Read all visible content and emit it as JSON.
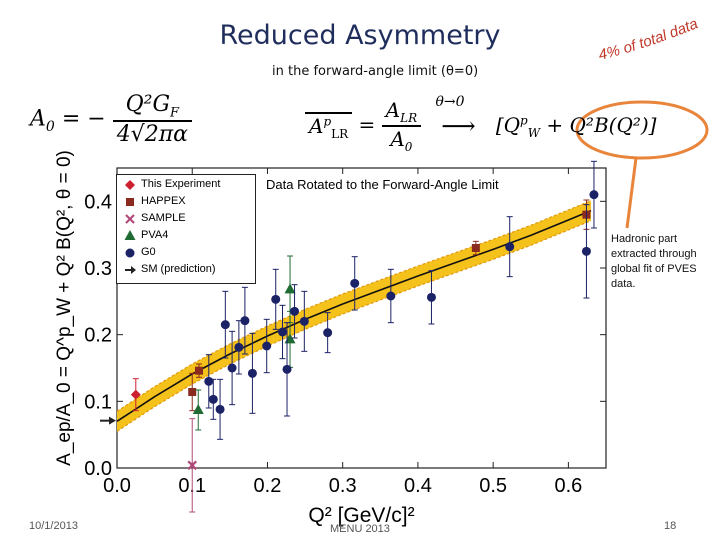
{
  "slide": {
    "title": "Reduced Asymmetry",
    "subtitle": "in the forward-angle limit (θ=0)",
    "curved_note": "4% of total data",
    "side_note": "Hadronic part extracted through global fit of PVES data.",
    "footer_date": "10/1/2013",
    "footer_conf": "MENU 2013",
    "footer_page": "18",
    "accent_orange": "#e9853b",
    "title_color": "#1f2d5c"
  },
  "equations": {
    "a0_lhs": "A",
    "a0_sub": "0",
    "a0_eq": "= −",
    "a0_num": "Q²G",
    "a0_num_sub": "F",
    "a0_den": "4√2πα",
    "ratio_lhs_num": "A",
    "ratio_lhs_num_sup": "p",
    "ratio_lhs_num_sub": "LR",
    "ratio_lhs_den": "",
    "ratio_eq": "=",
    "ratio_num": "A",
    "ratio_num_sub": "LR",
    "ratio_den": "A",
    "ratio_den_sub": "0",
    "arrow": "θ→0",
    "arrow_glyph": "⟶",
    "rhs_open": "[Q",
    "rhs_sup": "p",
    "rhs_sub": "W",
    "rhs_rest": " + Q²B(Q²)]"
  },
  "chart_data": {
    "type": "scatter",
    "title": "Data Rotated to the Forward-Angle Limit",
    "xlabel": "Q² [GeV/c]²",
    "ylabel": "A_ep/A_0 = Q^p_W + Q² B(Q², θ = 0)",
    "xlim": [
      0.0,
      0.65
    ],
    "ylim": [
      0.0,
      0.45
    ],
    "xticks": [
      0.0,
      0.1,
      0.2,
      0.3,
      0.4,
      0.5,
      0.6
    ],
    "xtick_labels": [
      "0.0",
      "0.1",
      "0.2",
      "0.3",
      "0.4",
      "0.5",
      "0.6"
    ],
    "yticks": [
      0.0,
      0.1,
      0.2,
      0.3,
      0.4
    ],
    "ytick_labels": [
      "0.0",
      "0.1",
      "0.2",
      "0.3",
      "0.4"
    ],
    "arrow_marker": {
      "name": "SM (prediction)",
      "y": 0.071,
      "color": "#222222"
    },
    "fit": {
      "name": "Global fit",
      "x": [
        0.0,
        0.05,
        0.1,
        0.15,
        0.2,
        0.25,
        0.3,
        0.35,
        0.4,
        0.45,
        0.5,
        0.55,
        0.6,
        0.63
      ],
      "y": [
        0.07,
        0.107,
        0.141,
        0.171,
        0.198,
        0.223,
        0.246,
        0.267,
        0.288,
        0.308,
        0.328,
        0.349,
        0.372,
        0.386
      ],
      "band": 0.015,
      "color": "#111111",
      "band_color": "#f5c21b",
      "band_edge_color": "#e09a10"
    },
    "series": [
      {
        "name": "This Experiment",
        "marker": "diamond",
        "color": "#cc1f2f",
        "points": [
          {
            "x": 0.025,
            "y": 0.11,
            "err": 0.024
          }
        ]
      },
      {
        "name": "HAPPEX",
        "marker": "square",
        "color": "#8b2a1e",
        "points": [
          {
            "x": 0.1,
            "y": 0.114,
            "err": 0.028
          },
          {
            "x": 0.109,
            "y": 0.146,
            "err": 0.01
          },
          {
            "x": 0.477,
            "y": 0.33,
            "err": 0.01
          },
          {
            "x": 0.624,
            "y": 0.38,
            "err": 0.022
          }
        ]
      },
      {
        "name": "SAMPLE",
        "marker": "x",
        "color": "#b14a78",
        "points": [
          {
            "x": 0.1,
            "y": 0.004,
            "err": 0.07
          }
        ]
      },
      {
        "name": "PVA4",
        "marker": "triangle",
        "color": "#1f6b33",
        "points": [
          {
            "x": 0.108,
            "y": 0.087,
            "err": 0.03
          },
          {
            "x": 0.23,
            "y": 0.268,
            "err": 0.05
          },
          {
            "x": 0.23,
            "y": 0.193,
            "err": 0.042
          }
        ]
      },
      {
        "name": "G0",
        "marker": "circle",
        "color": "#1b2266",
        "points": [
          {
            "x": 0.122,
            "y": 0.13,
            "err": 0.04
          },
          {
            "x": 0.128,
            "y": 0.103,
            "err": 0.03
          },
          {
            "x": 0.137,
            "y": 0.088,
            "err": 0.045
          },
          {
            "x": 0.144,
            "y": 0.215,
            "err": 0.05
          },
          {
            "x": 0.153,
            "y": 0.15,
            "err": 0.055
          },
          {
            "x": 0.162,
            "y": 0.181,
            "err": 0.04
          },
          {
            "x": 0.17,
            "y": 0.221,
            "err": 0.05
          },
          {
            "x": 0.18,
            "y": 0.142,
            "err": 0.06
          },
          {
            "x": 0.199,
            "y": 0.183,
            "err": 0.04
          },
          {
            "x": 0.211,
            "y": 0.253,
            "err": 0.045
          },
          {
            "x": 0.22,
            "y": 0.204,
            "err": 0.04
          },
          {
            "x": 0.226,
            "y": 0.148,
            "err": 0.07
          },
          {
            "x": 0.236,
            "y": 0.235,
            "err": 0.04
          },
          {
            "x": 0.249,
            "y": 0.22,
            "err": 0.045
          },
          {
            "x": 0.28,
            "y": 0.203,
            "err": 0.03
          },
          {
            "x": 0.316,
            "y": 0.277,
            "err": 0.04
          },
          {
            "x": 0.364,
            "y": 0.258,
            "err": 0.04
          },
          {
            "x": 0.418,
            "y": 0.256,
            "err": 0.04
          },
          {
            "x": 0.522,
            "y": 0.332,
            "err": 0.045
          },
          {
            "x": 0.624,
            "y": 0.325,
            "err": 0.07
          },
          {
            "x": 0.634,
            "y": 0.41,
            "err": 0.05
          }
        ]
      }
    ],
    "legend": {
      "placement": "top-left",
      "entries": [
        {
          "label": "This Experiment",
          "marker": "diamond",
          "color": "#cc1f2f"
        },
        {
          "label": "HAPPEX",
          "marker": "square",
          "color": "#8b2a1e"
        },
        {
          "label": "SAMPLE",
          "marker": "x",
          "color": "#b14a78"
        },
        {
          "label": "PVA4",
          "marker": "triangle",
          "color": "#1f6b33"
        },
        {
          "label": "G0",
          "marker": "circle",
          "color": "#1b2266"
        },
        {
          "label": "SM (prediction)",
          "marker": "arrow",
          "color": "#222222"
        }
      ]
    }
  }
}
